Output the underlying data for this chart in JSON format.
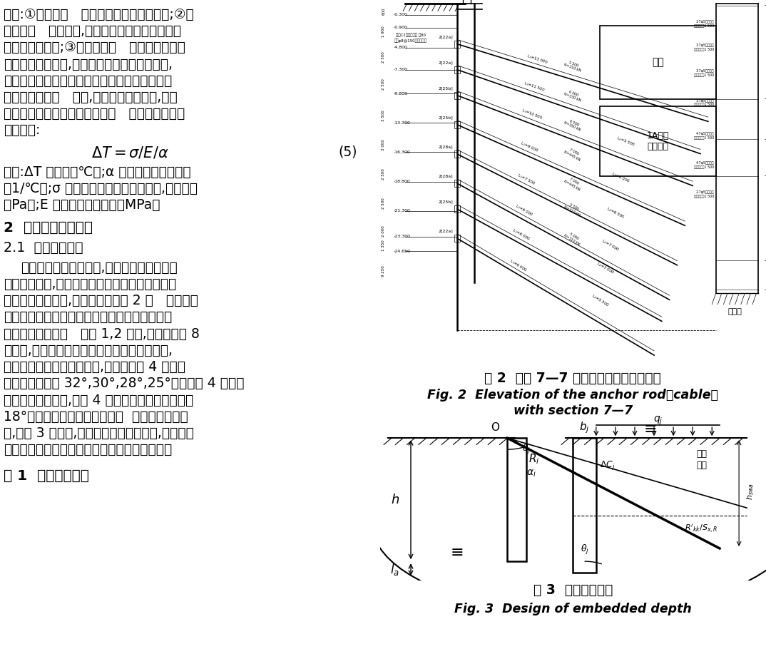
{
  "bg_color": "#ffffff",
  "fig2_caption1": "图 2  剖面 7—7 锚杆（索）倾角立面示意",
  "fig2_caption2": "Fig. 2  Elevation of the anchor rod（cable）",
  "fig2_caption3": "with section 7—7",
  "fig3_caption1": "图 3  嵌固深度设计",
  "fig3_caption2": "Fig. 3  Design of embedded depth",
  "table1_caption": "表 1  支点设计结果"
}
